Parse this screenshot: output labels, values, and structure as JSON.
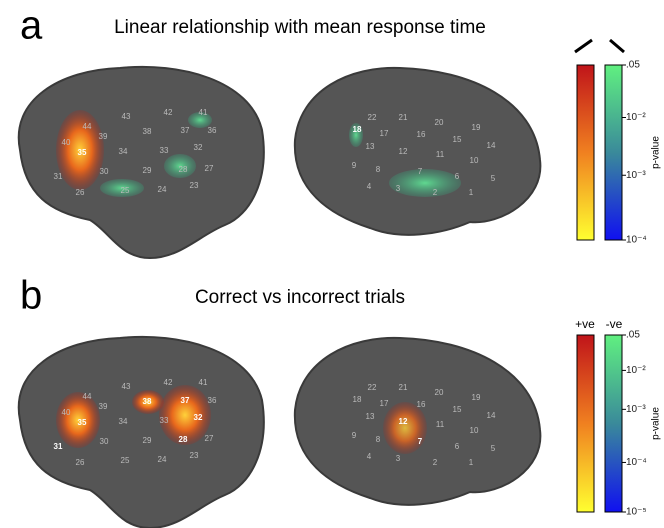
{
  "panels": [
    {
      "label": "a",
      "title": "Linear relationship with mean response time",
      "left_regions": [
        "44",
        "43",
        "42",
        "41",
        "40",
        "39",
        "38",
        "37",
        "36",
        "35",
        "34",
        "33",
        "32",
        "31",
        "30",
        "29",
        "28",
        "27",
        "26",
        "25",
        "24",
        "23"
      ],
      "right_regions": [
        "22",
        "21",
        "20",
        "19",
        "18",
        "17",
        "16",
        "15",
        "14",
        "13",
        "12",
        "11",
        "10",
        "9",
        "8",
        "7",
        "6",
        "5",
        "4",
        "3",
        "2",
        "1"
      ],
      "colorbar": {
        "ticks": [
          ".05",
          "10⁻²",
          "10⁻³",
          "10⁻⁴"
        ],
        "axis_label": "p-value"
      }
    },
    {
      "label": "b",
      "title": "Correct vs incorrect trials",
      "left_regions": [
        "44",
        "43",
        "42",
        "41",
        "40",
        "39",
        "38",
        "37",
        "36",
        "35",
        "34",
        "33",
        "32",
        "31",
        "30",
        "29",
        "28",
        "27",
        "26",
        "25",
        "24",
        "23"
      ],
      "right_regions": [
        "22",
        "21",
        "20",
        "19",
        "18",
        "17",
        "16",
        "15",
        "14",
        "13",
        "12",
        "11",
        "10",
        "9",
        "8",
        "7",
        "6",
        "5",
        "4",
        "3",
        "2",
        "1"
      ],
      "colorbar": {
        "positive_label": "+ve",
        "negative_label": "-ve",
        "ticks": [
          ".05",
          "10⁻²",
          "10⁻³",
          "10⁻⁴",
          "10⁻⁵"
        ],
        "axis_label": "p-value"
      }
    }
  ]
}
